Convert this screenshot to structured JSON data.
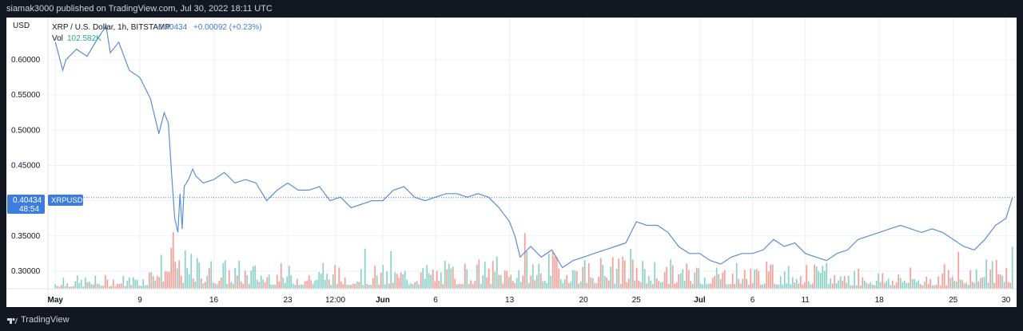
{
  "header": {
    "published_text": "siamak3000 published on TradingView.com, Jul 30, 2022 18:11 UTC"
  },
  "legend": {
    "symbol_text": "XRP / U.S. Dollar, 1h, BITSTAMP",
    "price_text": "0.40434",
    "change_text": "+0.00092 (+0.23%)",
    "vol_label": "Vol",
    "vol_value": "102.582K"
  },
  "axis": {
    "currency_label": "USD",
    "price_tag": "0.40434",
    "countdown_tag": "48:54",
    "symbol_tag": "XRPUSD"
  },
  "footer": {
    "brand": "TradingView"
  },
  "colors": {
    "price_line": "#5b8fd6",
    "up_volume": "#8fd3c8",
    "down_volume": "#f4a29b",
    "tag_bg": "#3d7ddb",
    "grid": "#eef0f3"
  },
  "chart_data": {
    "type": "line",
    "title": "XRP / U.S. Dollar, 1h, BITSTAMP",
    "ylabel": "USD",
    "ylim": [
      0.275,
      0.66
    ],
    "y_ticks": [
      0.3,
      0.35,
      0.4,
      0.45,
      0.5,
      0.55,
      0.6
    ],
    "y_tick_labels": [
      "0.30000",
      "0.35000",
      "0.40000",
      "0.45000",
      "0.50000",
      "0.55000",
      "0.60000"
    ],
    "x_ticks": [
      {
        "label": "May",
        "day": 0,
        "bold": true
      },
      {
        "label": "9",
        "day": 8
      },
      {
        "label": "16",
        "day": 15
      },
      {
        "label": "23",
        "day": 22
      },
      {
        "label": "12:00",
        "day": 26.5
      },
      {
        "label": "Jun",
        "day": 31,
        "bold": true
      },
      {
        "label": "6",
        "day": 36
      },
      {
        "label": "13",
        "day": 43
      },
      {
        "label": "20",
        "day": 50
      },
      {
        "label": "25",
        "day": 55
      },
      {
        "label": "Jul",
        "day": 61,
        "bold": true
      },
      {
        "label": "6",
        "day": 66
      },
      {
        "label": "11",
        "day": 71
      },
      {
        "label": "18",
        "day": 78
      },
      {
        "label": "25",
        "day": 85
      },
      {
        "label": "30",
        "day": 90
      }
    ],
    "x_range_days": [
      -0.7,
      91.0
    ],
    "price_series": {
      "name": "XRPUSD",
      "x_days": [
        0,
        0.7,
        1.0,
        2.0,
        3.0,
        4.0,
        4.8,
        5.2,
        6.0,
        7.0,
        8.0,
        9.0,
        9.8,
        10.3,
        10.7,
        11.0,
        11.3,
        11.6,
        11.8,
        12.0,
        12.2,
        12.6,
        13.0,
        13.3,
        14.0,
        15.0,
        16.0,
        17.0,
        18.0,
        19.0,
        20.0,
        21.0,
        22.0,
        23.0,
        24.0,
        25.0,
        26.0,
        27.0,
        28.0,
        29.0,
        30.0,
        31.0,
        32.0,
        33.0,
        34.0,
        35.0,
        36.0,
        37.0,
        38.0,
        39.0,
        40.0,
        41.0,
        42.0,
        43.0,
        43.5,
        44.0,
        45.0,
        46.0,
        47.0,
        48.0,
        49.0,
        50.0,
        51.0,
        52.0,
        53.0,
        54.0,
        55.0,
        56.0,
        57.0,
        58.0,
        59.0,
        60.0,
        61.0,
        62.0,
        63.0,
        64.0,
        65.0,
        66.0,
        67.0,
        68.0,
        69.0,
        70.0,
        71.0,
        72.0,
        73.0,
        74.0,
        75.0,
        76.0,
        77.0,
        78.0,
        79.0,
        80.0,
        81.0,
        82.0,
        83.0,
        84.0,
        85.0,
        86.0,
        87.0,
        88.0,
        89.0,
        90.0,
        90.6
      ],
      "values": [
        0.625,
        0.585,
        0.6,
        0.615,
        0.605,
        0.63,
        0.648,
        0.61,
        0.625,
        0.585,
        0.575,
        0.545,
        0.495,
        0.525,
        0.51,
        0.44,
        0.375,
        0.355,
        0.41,
        0.36,
        0.42,
        0.43,
        0.445,
        0.435,
        0.425,
        0.43,
        0.44,
        0.425,
        0.43,
        0.425,
        0.4,
        0.415,
        0.425,
        0.415,
        0.415,
        0.42,
        0.4,
        0.405,
        0.39,
        0.395,
        0.4,
        0.4,
        0.415,
        0.42,
        0.405,
        0.4,
        0.405,
        0.41,
        0.41,
        0.405,
        0.41,
        0.405,
        0.39,
        0.37,
        0.35,
        0.32,
        0.335,
        0.32,
        0.33,
        0.305,
        0.315,
        0.32,
        0.325,
        0.33,
        0.335,
        0.34,
        0.37,
        0.365,
        0.365,
        0.355,
        0.335,
        0.325,
        0.325,
        0.315,
        0.31,
        0.32,
        0.325,
        0.325,
        0.33,
        0.345,
        0.335,
        0.34,
        0.325,
        0.32,
        0.315,
        0.325,
        0.33,
        0.345,
        0.35,
        0.355,
        0.36,
        0.365,
        0.36,
        0.355,
        0.36,
        0.355,
        0.345,
        0.335,
        0.33,
        0.345,
        0.365,
        0.375,
        0.404
      ]
    },
    "volume_series": {
      "name": "Vol",
      "bars": 480,
      "max_relative": 1.0,
      "profile_days": [
        0,
        8,
        10,
        11,
        12,
        15,
        22,
        31,
        43,
        44,
        55,
        61,
        66,
        71,
        78,
        85,
        88,
        90
      ],
      "profile_levels": [
        0.18,
        0.22,
        0.55,
        0.85,
        0.55,
        0.45,
        0.35,
        0.35,
        0.45,
        0.55,
        0.45,
        0.4,
        0.4,
        0.35,
        0.3,
        0.3,
        0.45,
        0.55
      ]
    }
  }
}
